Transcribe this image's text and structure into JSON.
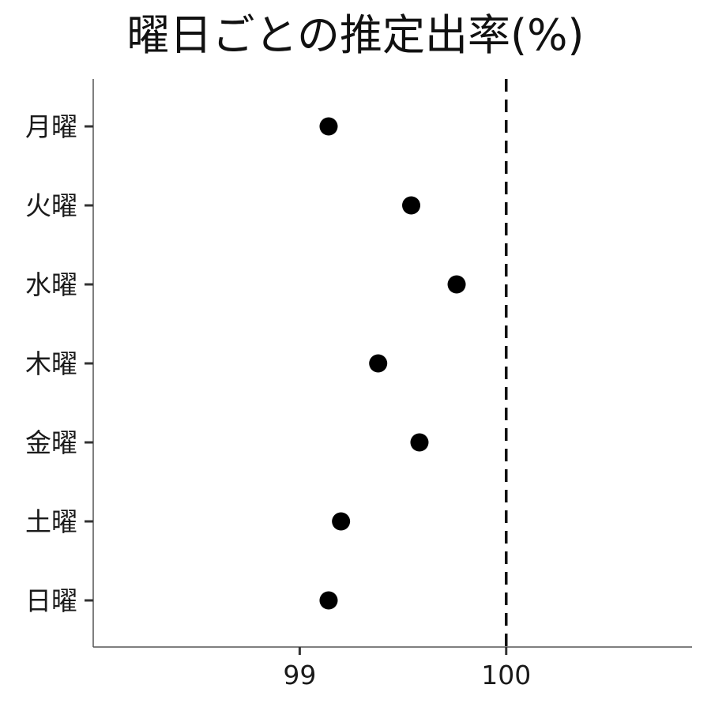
{
  "chart_data": {
    "type": "scatter",
    "title": "曜日ごとの推定出率(%)",
    "xlabel": "",
    "ylabel": "",
    "categories": [
      "月曜",
      "火曜",
      "水曜",
      "木曜",
      "金曜",
      "土曜",
      "日曜"
    ],
    "values": [
      99.14,
      99.54,
      99.76,
      99.38,
      99.58,
      99.2,
      99.14
    ],
    "xlim": [
      98.0,
      100.9
    ],
    "xticks": [
      99,
      100
    ],
    "xtick_labels": [
      "99",
      "100"
    ],
    "reference_line": {
      "x": 100,
      "style": "dashed"
    },
    "grid": false,
    "colors": {
      "point": "#000000",
      "axis": "#555555",
      "reference": "#111111"
    }
  }
}
